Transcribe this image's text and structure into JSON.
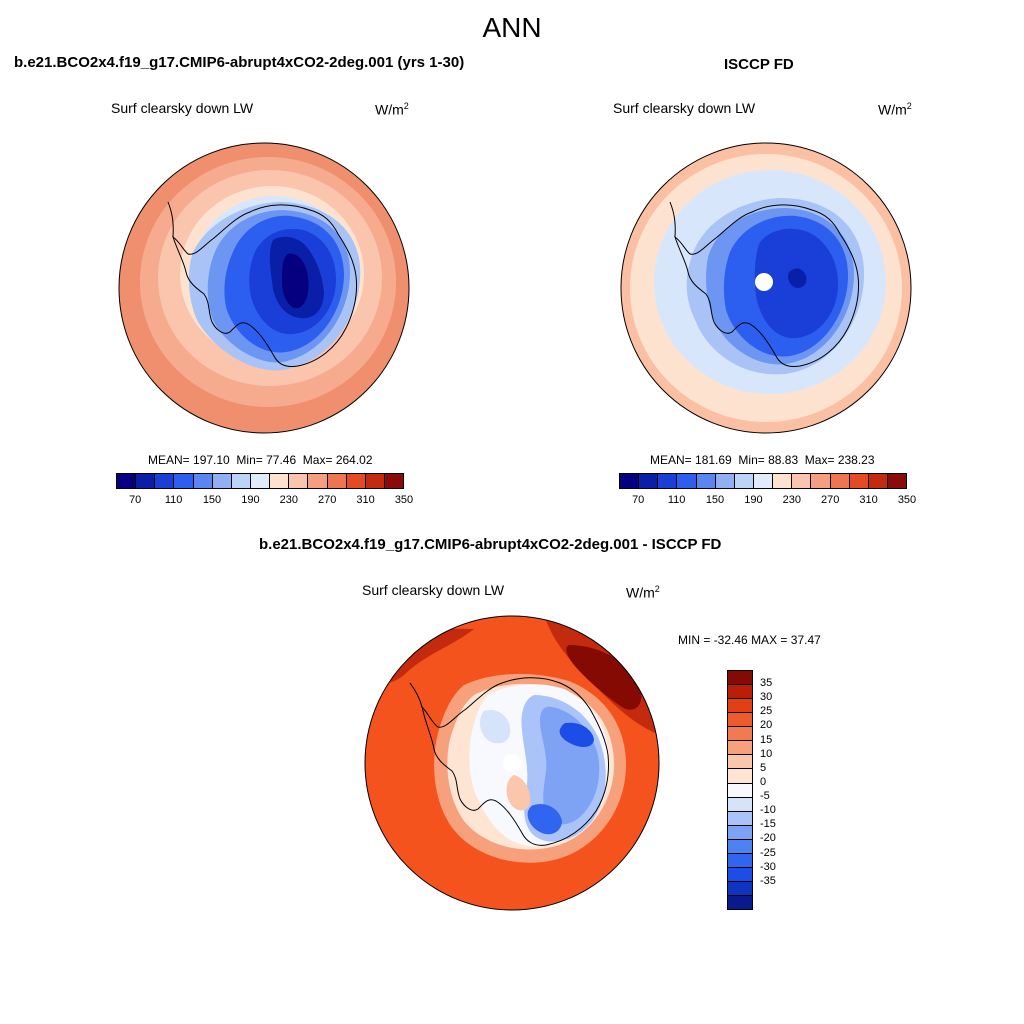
{
  "figure": {
    "title": "ANN"
  },
  "colors": {
    "abs_palette": [
      "#05007f",
      "#0a1fa8",
      "#1a3fd9",
      "#2c5ef0",
      "#5a86f2",
      "#8fb0f5",
      "#bcd4fa",
      "#e0ecfc",
      "#fde3cf",
      "#fac4ad",
      "#f59e81",
      "#ef7551",
      "#e64a22",
      "#c42a0d",
      "#8c0a0a"
    ],
    "diff_palette": [
      "#0a1a8c",
      "#0f35c0",
      "#1c4de6",
      "#3066ef",
      "#4d82f2",
      "#7ea3f5",
      "#aac3f8",
      "#d6e4fb",
      "#f7f9ff",
      "#fde4d3",
      "#fac6ac",
      "#f6a07c",
      "#f27a52",
      "#ec5a2d",
      "#e33f14",
      "#b91f06",
      "#850a04"
    ]
  },
  "panels": [
    {
      "id": "model",
      "title": "b.e21.BCO2x4.f19_g17.CMIP6-abrupt4xCO2-2deg.001 (yrs 1-30)",
      "variable": "Surf clearsky down LW",
      "units_base": "W/m",
      "units_exp": "2",
      "stats": {
        "mean_label": "MEAN=",
        "mean": "197.10",
        "min_label": "Min=",
        "min": "77.46",
        "max_label": "Max=",
        "max": "264.02"
      },
      "colorbar_ticks": [
        "70",
        "110",
        "150",
        "190",
        "230",
        "270",
        "310",
        "350"
      ]
    },
    {
      "id": "obs",
      "title": "ISCCP FD",
      "variable": "Surf clearsky down LW",
      "units_base": "W/m",
      "units_exp": "2",
      "stats": {
        "mean_label": "MEAN=",
        "mean": "181.69",
        "min_label": "Min=",
        "min": "88.83",
        "max_label": "Max=",
        "max": "238.23"
      },
      "colorbar_ticks": [
        "70",
        "110",
        "150",
        "190",
        "230",
        "270",
        "310",
        "350"
      ]
    },
    {
      "id": "diff",
      "title": "b.e21.BCO2x4.f19_g17.CMIP6-abrupt4xCO2-2deg.001 - ISCCP FD",
      "variable": "Surf clearsky down LW",
      "units": "W/m",
      "stats": {
        "min_label": "MIN =",
        "min": "-32.46",
        "max_label": "MAX =",
        "max": "37.47"
      },
      "colorbar_ticks": [
        "35",
        "30",
        "25",
        "20",
        "15",
        "10",
        "5",
        "0",
        "-5",
        "-10",
        "-15",
        "-20",
        "-25",
        "-30",
        "-35"
      ]
    }
  ]
}
